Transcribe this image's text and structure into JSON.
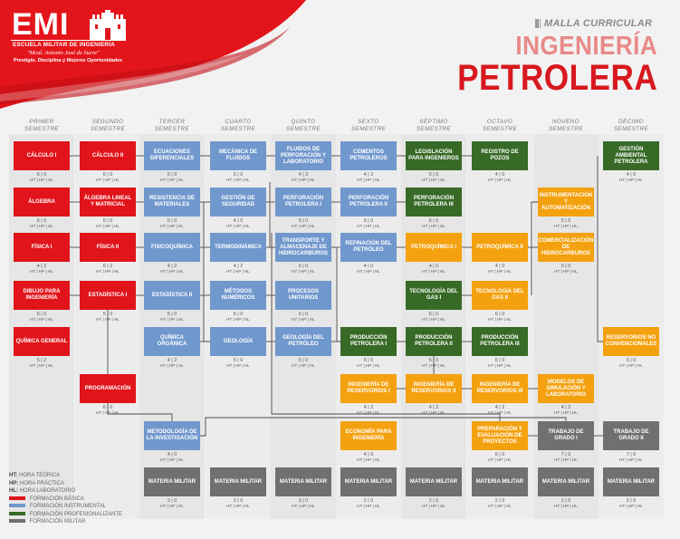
{
  "logo": {
    "title": "EMI",
    "line1": "ESCUELA MILITAR DE INGENIERÍA",
    "line2": "\"Mcal. Antonio José de Sucre\"",
    "line3": "Prestigio, Disciplina y Mejores Oportunidades"
  },
  "header": {
    "subtitle": "MALLA CURRICULAR",
    "title_line1": "INGENIERÍA",
    "title_line2": "PETROLERA"
  },
  "semesters": [
    {
      "line1": "PRIMER",
      "line2": "SEMESTRE"
    },
    {
      "line1": "SEGUNDO",
      "line2": "SEMESTRE"
    },
    {
      "line1": "TERCER",
      "line2": "SEMESTRE"
    },
    {
      "line1": "CUARTO",
      "line2": "SEMESTRE"
    },
    {
      "line1": "QUINTO",
      "line2": "SEMESTRE"
    },
    {
      "line1": "SEXTO",
      "line2": "SEMESTRE"
    },
    {
      "line1": "SÉPTIMO",
      "line2": "SEMESTRE"
    },
    {
      "line1": "OCTAVO",
      "line2": "SEMESTRE"
    },
    {
      "line1": "NOVENO",
      "line2": "SEMESTRE"
    },
    {
      "line1": "DÉCIMO",
      "line2": "SEMESTRE"
    }
  ],
  "hours_label": "HT | HP | HL",
  "courses": [
    {
      "name": "CÁLCULO I",
      "hours": "6 | 0",
      "color": "red",
      "col": 0,
      "row": 0
    },
    {
      "name": "ÁLGEBRA",
      "hours": "6 | 0",
      "color": "red",
      "col": 0,
      "row": 1
    },
    {
      "name": "FÍSICA I",
      "hours": "4 | 2",
      "color": "red",
      "col": 0,
      "row": 2
    },
    {
      "name": "DIBUJO PARA INGENIERÍA",
      "hours": "6 | 0",
      "color": "red",
      "col": 0,
      "row": 3
    },
    {
      "name": "QUÍMICA GENERAL",
      "hours": "5 | 2",
      "color": "red",
      "col": 0,
      "row": 4
    },
    {
      "name": "CÁLCULO II",
      "hours": "6 | 0",
      "color": "red",
      "col": 1,
      "row": 0
    },
    {
      "name": "ÁLGEBRA LINEAL Y MATRICIAL",
      "hours": "6 | 0",
      "color": "red",
      "col": 1,
      "row": 1
    },
    {
      "name": "FÍSICA II",
      "hours": "6 | 2",
      "color": "red",
      "col": 1,
      "row": 2
    },
    {
      "name": "ESTADÍSTICA I",
      "hours": "5 | 0",
      "color": "red",
      "col": 1,
      "row": 3
    },
    {
      "name": "PROGRAMACIÓN",
      "hours": "6 | 0",
      "color": "red",
      "col": 1,
      "row": 5
    },
    {
      "name": "ECUACIONES DIFERENCIALES",
      "hours": "5 | 0",
      "color": "blue",
      "col": 2,
      "row": 0
    },
    {
      "name": "RESISTENCIA DE MATERIALES",
      "hours": "6 | 0",
      "color": "blue",
      "col": 2,
      "row": 1
    },
    {
      "name": "FISICOQUÍMICA",
      "hours": "4 | 2",
      "color": "blue",
      "col": 2,
      "row": 2
    },
    {
      "name": "ESTADÍSTICA II",
      "hours": "5 | 0",
      "color": "blue",
      "col": 2,
      "row": 3
    },
    {
      "name": "QUÍMICA ORGÁNICA",
      "hours": "4 | 2",
      "color": "blue",
      "col": 2,
      "row": 4
    },
    {
      "name": "METODOLOGÍA DE LA INVESTIGACIÓN",
      "hours": "4 | 0",
      "color": "blue",
      "col": 2,
      "row": 6
    },
    {
      "name": "MECÁNICA DE FLUIDOS",
      "hours": "5 | 0",
      "color": "blue",
      "col": 3,
      "row": 0
    },
    {
      "name": "GESTIÓN DE SEGURIDAD",
      "hours": "4 | 0",
      "color": "blue",
      "col": 3,
      "row": 1
    },
    {
      "name": "TERMODINÁMICA",
      "hours": "4 | 2",
      "color": "blue",
      "col": 3,
      "row": 2
    },
    {
      "name": "MÉTODOS NUMÉRICOS",
      "hours": "6 | 0",
      "color": "blue",
      "col": 3,
      "row": 3
    },
    {
      "name": "GEOLOGÍA",
      "hours": "5 | 0",
      "color": "blue",
      "col": 3,
      "row": 4
    },
    {
      "name": "FLUIDOS DE PERFORACIÓN Y LABORATORIO",
      "hours": "4 | 2",
      "color": "blue",
      "col": 4,
      "row": 0
    },
    {
      "name": "PERFORACIÓN PETROLERA I",
      "hours": "5 | 0",
      "color": "blue",
      "col": 4,
      "row": 1
    },
    {
      "name": "TRANSPORTE Y ALMACENAJE DE HIDROCARBUROS",
      "hours": "6 | 0",
      "color": "blue",
      "col": 4,
      "row": 2
    },
    {
      "name": "PROCESOS UNITARIOS",
      "hours": "6 | 0",
      "color": "blue",
      "col": 4,
      "row": 3
    },
    {
      "name": "GEOLOGÍA DEL PETRÓLEO",
      "hours": "5 | 0",
      "color": "blue",
      "col": 4,
      "row": 4
    },
    {
      "name": "CEMENTOS PETROLEROS",
      "hours": "4 | 2",
      "color": "blue",
      "col": 5,
      "row": 0
    },
    {
      "name": "PERFORACIÓN PETROLERA II",
      "hours": "6 | 0",
      "color": "blue",
      "col": 5,
      "row": 1
    },
    {
      "name": "REFINACIÓN DEL PETRÓLEO",
      "hours": "4 | 0",
      "color": "blue",
      "col": 5,
      "row": 2
    },
    {
      "name": "PRODUCCIÓN PETROLERA I",
      "hours": "6 | 0",
      "color": "green",
      "col": 5,
      "row": 4
    },
    {
      "name": "INGENIERÍA DE RESERVORIOS I",
      "hours": "4 | 2",
      "color": "orange",
      "col": 5,
      "row": 5
    },
    {
      "name": "ECONOMÍA PARA INGENIERÍA",
      "hours": "4 | 0",
      "color": "orange",
      "col": 5,
      "row": 6
    },
    {
      "name": "LEGISLACIÓN PARA INGENIEROS",
      "hours": "5 | 0",
      "color": "green",
      "col": 6,
      "row": 0
    },
    {
      "name": "PERFORACIÓN PETROLERA III",
      "hours": "6 | 0",
      "color": "green",
      "col": 6,
      "row": 1
    },
    {
      "name": "PETROQUÍMICA I",
      "hours": "4 | 0",
      "color": "orange",
      "col": 6,
      "row": 2
    },
    {
      "name": "TECNOLOGÍA DEL GAS I",
      "hours": "6 | 0",
      "color": "green",
      "col": 6,
      "row": 3
    },
    {
      "name": "PRODUCCIÓN PETROLERA II",
      "hours": "6 | 0",
      "color": "green",
      "col": 6,
      "row": 4
    },
    {
      "name": "INGENIERÍA DE RESERVORIOS II",
      "hours": "4 | 2",
      "color": "orange",
      "col": 6,
      "row": 5
    },
    {
      "name": "REGISTRO DE POZOS",
      "hours": "4 | 0",
      "color": "green",
      "col": 7,
      "row": 0
    },
    {
      "name": "PETROQUÍMICA II",
      "hours": "4 | 0",
      "color": "orange",
      "col": 7,
      "row": 2
    },
    {
      "name": "TECNOLOGÍA DEL GAS II",
      "hours": "6 | 0",
      "color": "orange",
      "col": 7,
      "row": 3
    },
    {
      "name": "PRODUCCIÓN PETROLERA III",
      "hours": "6 | 0",
      "color": "green",
      "col": 7,
      "row": 4
    },
    {
      "name": "INGENIERÍA DE RESERVORIOS III",
      "hours": "4 | 2",
      "color": "orange",
      "col": 7,
      "row": 5
    },
    {
      "name": "PREPARACIÓN Y EVALUACIÓN DE PROYECTOS",
      "hours": "6 | 0",
      "color": "orange",
      "col": 7,
      "row": 6
    },
    {
      "name": "INSTRUMENTACIÓN Y AUTOMATIZACIÓN",
      "hours": "5 | 0",
      "color": "orange",
      "col": 8,
      "row": 1
    },
    {
      "name": "COMERCIALIZACIÓN DE HIDROCARBUROS",
      "hours": "5 | 0",
      "color": "orange",
      "col": 8,
      "row": 2
    },
    {
      "name": "MODELOS DE SIMULACIÓN Y LABORATORIO",
      "hours": "4 | 2",
      "color": "orange",
      "col": 8,
      "row": 5
    },
    {
      "name": "TRABAJO DE GRADO I",
      "hours": "7 | 0",
      "color": "gray",
      "col": 8,
      "row": 6
    },
    {
      "name": "GESTIÓN AMBIENTAL PETROLERA",
      "hours": "4 | 0",
      "color": "green",
      "col": 9,
      "row": 0
    },
    {
      "name": "RESERVORIOS NO CONVENCIONALES",
      "hours": "5 | 0",
      "color": "orange",
      "col": 9,
      "row": 4
    },
    {
      "name": "TRABAJO DE GRADO II",
      "hours": "7 | 0",
      "color": "gray",
      "col": 9,
      "row": 6
    },
    {
      "name": "MATERIA MILITAR",
      "hours": "2 | 0",
      "color": "gray",
      "col": 2,
      "row": 7
    },
    {
      "name": "MATERIA MILITAR",
      "hours": "2 | 0",
      "color": "gray",
      "col": 3,
      "row": 7
    },
    {
      "name": "MATERIA MILITAR",
      "hours": "2 | 0",
      "color": "gray",
      "col": 4,
      "row": 7
    },
    {
      "name": "MATERIA MILITAR",
      "hours": "2 | 0",
      "color": "gray",
      "col": 5,
      "row": 7
    },
    {
      "name": "MATERIA MILITAR",
      "hours": "2 | 0",
      "color": "gray",
      "col": 6,
      "row": 7
    },
    {
      "name": "MATERIA MILITAR",
      "hours": "2 | 0",
      "color": "gray",
      "col": 7,
      "row": 7
    },
    {
      "name": "MATERIA MILITAR",
      "hours": "2 | 0",
      "color": "gray",
      "col": 8,
      "row": 7
    },
    {
      "name": "MATERIA MILITAR",
      "hours": "2 | 0",
      "color": "gray",
      "col": 9,
      "row": 7
    }
  ],
  "legend": [
    {
      "key": "HT:",
      "text": "HORA TEÓRICA",
      "color": ""
    },
    {
      "key": "HP:",
      "text": "HORA PRÁCTICA",
      "color": ""
    },
    {
      "key": "HL:",
      "text": "HORA LABORATORIO",
      "color": ""
    },
    {
      "key": "",
      "text": "FORMACIÓN BÁSICA",
      "color": "#e1141b"
    },
    {
      "key": "",
      "text": "FORMACIÓN INSTRUMENTAL",
      "color": "#7198cd"
    },
    {
      "key": "",
      "text": "FORMACIÓN PROFESIONALIZANTE",
      "color": "#376a26"
    },
    {
      "key": "",
      "text": "FORMACIÓN MILITAR",
      "color": "#707070"
    }
  ],
  "colors": {
    "red": "#e1141b",
    "blue": "#7198cd",
    "green": "#376a26",
    "orange": "#f4a10f",
    "gray": "#707070"
  }
}
